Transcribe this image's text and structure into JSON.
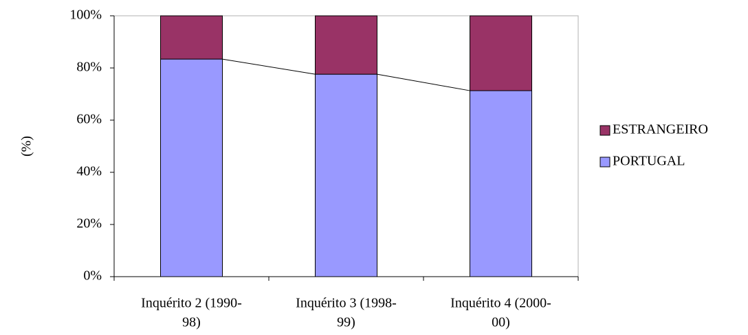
{
  "chart_data": {
    "type": "stacked-bar",
    "y_label": "(%)",
    "categories": [
      [
        "Inquérito 2 (1990-",
        "98)"
      ],
      [
        "Inquérito 3 (1998-",
        "99)"
      ],
      [
        "Inquérito 4 (2000-",
        "00)"
      ]
    ],
    "series": [
      {
        "name": "PORTUGAL",
        "color": "#9999ff",
        "values": [
          83.4,
          77.6,
          71.3
        ]
      },
      {
        "name": "ESTRANGEIRO",
        "color": "#993366",
        "values": [
          16.6,
          22.4,
          28.7
        ]
      }
    ],
    "ylim": [
      0,
      100
    ],
    "yticks": [
      {
        "value": 0,
        "label": "0%"
      },
      {
        "value": 20,
        "label": "20%"
      },
      {
        "value": 40,
        "label": "40%"
      },
      {
        "value": 60,
        "label": "60%"
      },
      {
        "value": 80,
        "label": "80%"
      },
      {
        "value": 100,
        "label": "100%"
      }
    ],
    "series_lines": true,
    "legend": "right"
  }
}
